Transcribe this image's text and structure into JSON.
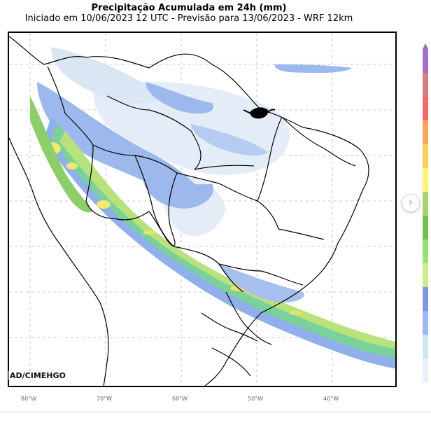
{
  "title": "Precipitação Acumulada em 24h (mm)",
  "subtitle": "Iniciado em 10/06/2023 12 UTC - Previsão para 13/06/2023 - WRF 12km",
  "credit": "AD/CIMEHGO",
  "longitude_labels": [
    "80°W",
    "70°W",
    "60°W",
    "50°W",
    "40°W"
  ],
  "colorbar": {
    "colors": [
      "#a271c8",
      "#d47f80",
      "#ef6a6a",
      "#f5a45a",
      "#f6d05e",
      "#fdf27a",
      "#a7d36a",
      "#6fbf55",
      "#9adf7a",
      "#cdeb8a",
      "#7f97df",
      "#9fb9ef",
      "#cfe7f2",
      "#e9f0f8"
    ]
  },
  "next_button": {
    "icon": "chevron-right-icon",
    "glyph": "›"
  }
}
